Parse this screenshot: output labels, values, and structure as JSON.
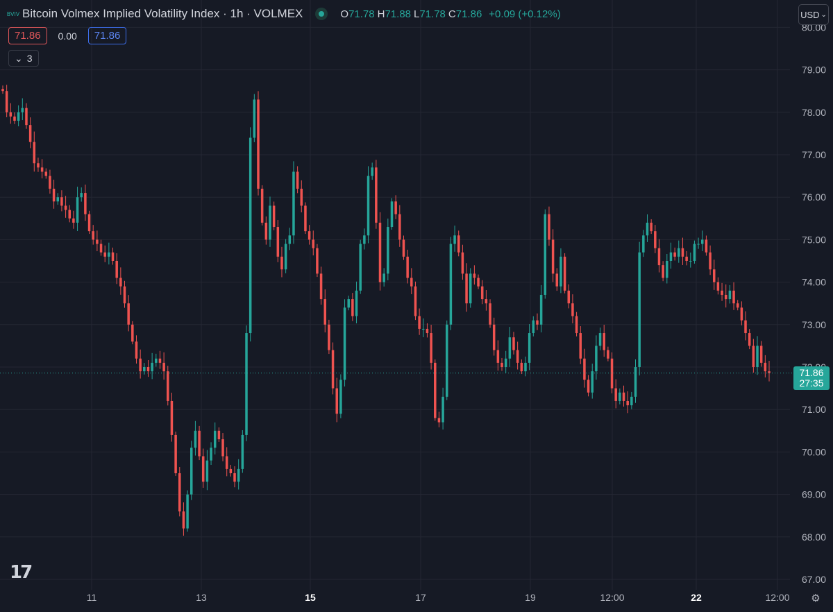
{
  "header": {
    "title": "Bitcoin Volmex Implied Volatility Index · 1h · VOLMEX",
    "logo_icon": "volmex-logo-icon",
    "logo_text": "BVIV",
    "ohlc": {
      "o_label": "O",
      "o": "71.78",
      "h_label": "H",
      "h": "71.88",
      "l_label": "L",
      "l": "71.78",
      "c_label": "C",
      "c": "71.86",
      "change": "+0.09 (+0.12%)"
    }
  },
  "quote": {
    "bid": "71.86",
    "spread": "0.00",
    "ask": "71.86"
  },
  "indicators": {
    "count": "3"
  },
  "currency": "USD",
  "last_price": {
    "value": "71.86",
    "countdown": "27:35"
  },
  "colors": {
    "up": "#26a69a",
    "down": "#ef5350",
    "background": "#161a25",
    "grid": "#242733"
  },
  "chart_data": {
    "type": "candlestick",
    "title": "Bitcoin Volmex Implied Volatility Index",
    "interval": "1h",
    "y_axis": {
      "side": "right",
      "ylim": [
        67.0,
        80.0
      ],
      "ticks": [
        "67.00",
        "68.00",
        "69.00",
        "70.00",
        "71.00",
        "72.00",
        "73.00",
        "74.00",
        "75.00",
        "76.00",
        "77.00",
        "78.00",
        "79.00",
        "80.00"
      ]
    },
    "x_axis": {
      "ticks": [
        {
          "label": "11",
          "bold": false
        },
        {
          "label": "13",
          "bold": false
        },
        {
          "label": "15",
          "bold": true
        },
        {
          "label": "17",
          "bold": false
        },
        {
          "label": "19",
          "bold": false
        },
        {
          "label": "12:00",
          "bold": false
        },
        {
          "label": "22",
          "bold": true
        },
        {
          "label": "12:00",
          "bold": false
        }
      ]
    },
    "last_close": 71.86,
    "closes": [
      78.5,
      78.0,
      77.9,
      77.8,
      78.0,
      78.1,
      77.7,
      77.3,
      76.8,
      76.7,
      76.6,
      76.5,
      76.2,
      75.9,
      76.0,
      75.8,
      75.7,
      75.5,
      75.4,
      76.0,
      76.1,
      75.6,
      75.2,
      75.0,
      74.9,
      74.7,
      74.6,
      74.7,
      74.5,
      74.1,
      73.9,
      73.5,
      73.0,
      72.6,
      72.2,
      71.9,
      72.0,
      71.9,
      72.1,
      72.2,
      72.1,
      71.9,
      71.2,
      70.4,
      69.5,
      68.6,
      68.2,
      69.0,
      70.1,
      70.5,
      69.9,
      69.3,
      69.8,
      70.1,
      70.5,
      70.3,
      69.9,
      69.6,
      69.5,
      69.3,
      69.6,
      70.4,
      72.8,
      77.4,
      78.3,
      76.2,
      75.4,
      75.0,
      75.8,
      75.3,
      74.6,
      74.3,
      74.9,
      75.1,
      76.6,
      76.2,
      75.8,
      75.2,
      75.0,
      74.8,
      74.2,
      73.6,
      73.0,
      72.4,
      71.5,
      70.9,
      71.7,
      73.4,
      73.6,
      73.2,
      73.8,
      74.9,
      75.1,
      76.5,
      76.7,
      75.4,
      74.0,
      74.2,
      75.3,
      75.9,
      75.6,
      75.0,
      74.6,
      74.1,
      73.9,
      73.2,
      72.9,
      72.9,
      72.8,
      72.1,
      70.8,
      70.7,
      71.3,
      73.0,
      74.9,
      75.1,
      74.7,
      74.2,
      73.5,
      74.2,
      74.1,
      73.9,
      73.6,
      73.5,
      73.0,
      72.4,
      72.1,
      72.0,
      72.2,
      72.7,
      72.4,
      72.1,
      71.9,
      72.1,
      72.8,
      73.1,
      73.0,
      73.7,
      75.6,
      75.0,
      74.2,
      73.9,
      74.6,
      73.8,
      73.5,
      73.2,
      72.8,
      72.2,
      71.7,
      71.4,
      71.9,
      72.5,
      72.8,
      72.4,
      72.2,
      71.5,
      71.2,
      71.4,
      71.2,
      71.1,
      71.3,
      72.0,
      74.7,
      75.1,
      75.4,
      75.2,
      74.8,
      74.4,
      74.1,
      74.5,
      74.7,
      74.6,
      74.8,
      74.6,
      74.5,
      74.5,
      74.9,
      74.9,
      75.0,
      74.7,
      74.3,
      74.0,
      73.8,
      73.7,
      73.6,
      73.8,
      73.5,
      73.4,
      73.1,
      72.8,
      72.5,
      72.0,
      72.5,
      72.1,
      71.9,
      71.86
    ]
  }
}
